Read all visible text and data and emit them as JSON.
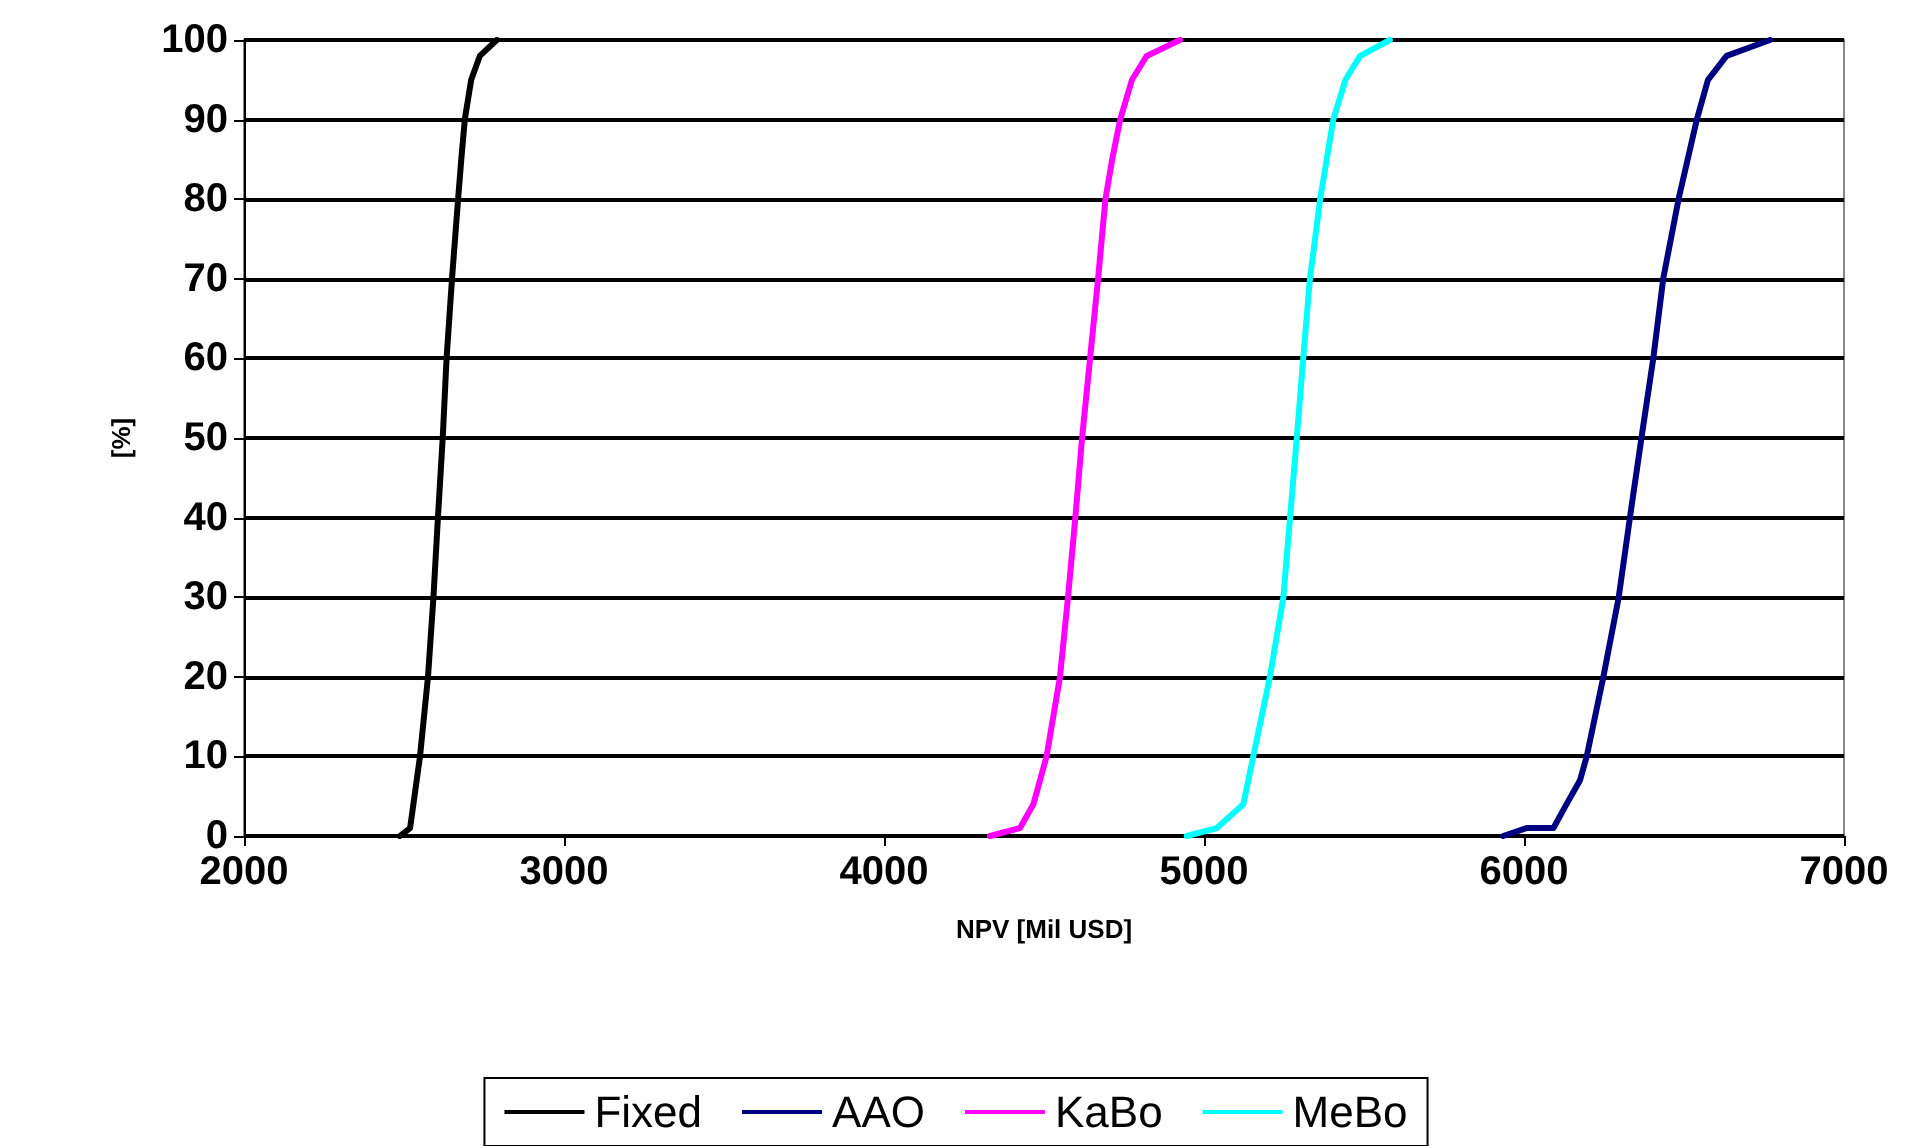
{
  "chart_data": {
    "type": "line",
    "xlabel": "NPV [Mil USD]",
    "ylabel": "[%]",
    "xlim": [
      2000,
      7000
    ],
    "xticks": [
      2000,
      3000,
      4000,
      5000,
      6000,
      7000
    ],
    "ylim": [
      0,
      100
    ],
    "yticks": [
      0,
      10,
      20,
      30,
      40,
      50,
      60,
      70,
      80,
      90,
      100
    ],
    "grid": "y",
    "legend": "bottom",
    "marker": "none",
    "line_style": "solid",
    "series": [
      {
        "name": "Fixed",
        "color": "#000000",
        "x": [
          2487,
          2519,
          2550,
          2575,
          2592,
          2606,
          2621,
          2633,
          2650,
          2669,
          2679,
          2690,
          2710,
          2737,
          2790
        ],
        "values": [
          0,
          1,
          10,
          20,
          30,
          40,
          50,
          60,
          70,
          80,
          85,
          90,
          95,
          98,
          100
        ]
      },
      {
        "name": "AAO",
        "color": "#000080",
        "x": [
          5935,
          6008,
          6092,
          6133,
          6175,
          6196,
          6248,
          6296,
          6331,
          6367,
          6404,
          6435,
          6483,
          6540,
          6575,
          6633,
          6769
        ],
        "values": [
          0,
          1,
          1,
          4,
          7,
          10,
          20,
          30,
          40,
          50,
          60,
          70,
          80,
          90,
          95,
          98,
          100
        ]
      },
      {
        "name": "KaBo",
        "color": "#ff00ff",
        "x": [
          4331,
          4425,
          4467,
          4508,
          4550,
          4575,
          4598,
          4619,
          4644,
          4669,
          4692,
          4713,
          4738,
          4775,
          4821,
          4925
        ],
        "values": [
          0,
          1,
          4,
          10,
          20,
          30,
          40,
          50,
          60,
          70,
          80,
          85,
          90,
          95,
          98,
          100
        ]
      },
      {
        "name": "MeBo",
        "color": "#00ffff",
        "x": [
          4946,
          5040,
          5123,
          5154,
          5206,
          5248,
          5269,
          5290,
          5310,
          5331,
          5363,
          5404,
          5442,
          5488,
          5581
        ],
        "values": [
          0,
          1,
          4,
          10,
          20,
          30,
          40,
          50,
          60,
          70,
          80,
          90,
          95,
          98,
          100
        ]
      }
    ]
  }
}
